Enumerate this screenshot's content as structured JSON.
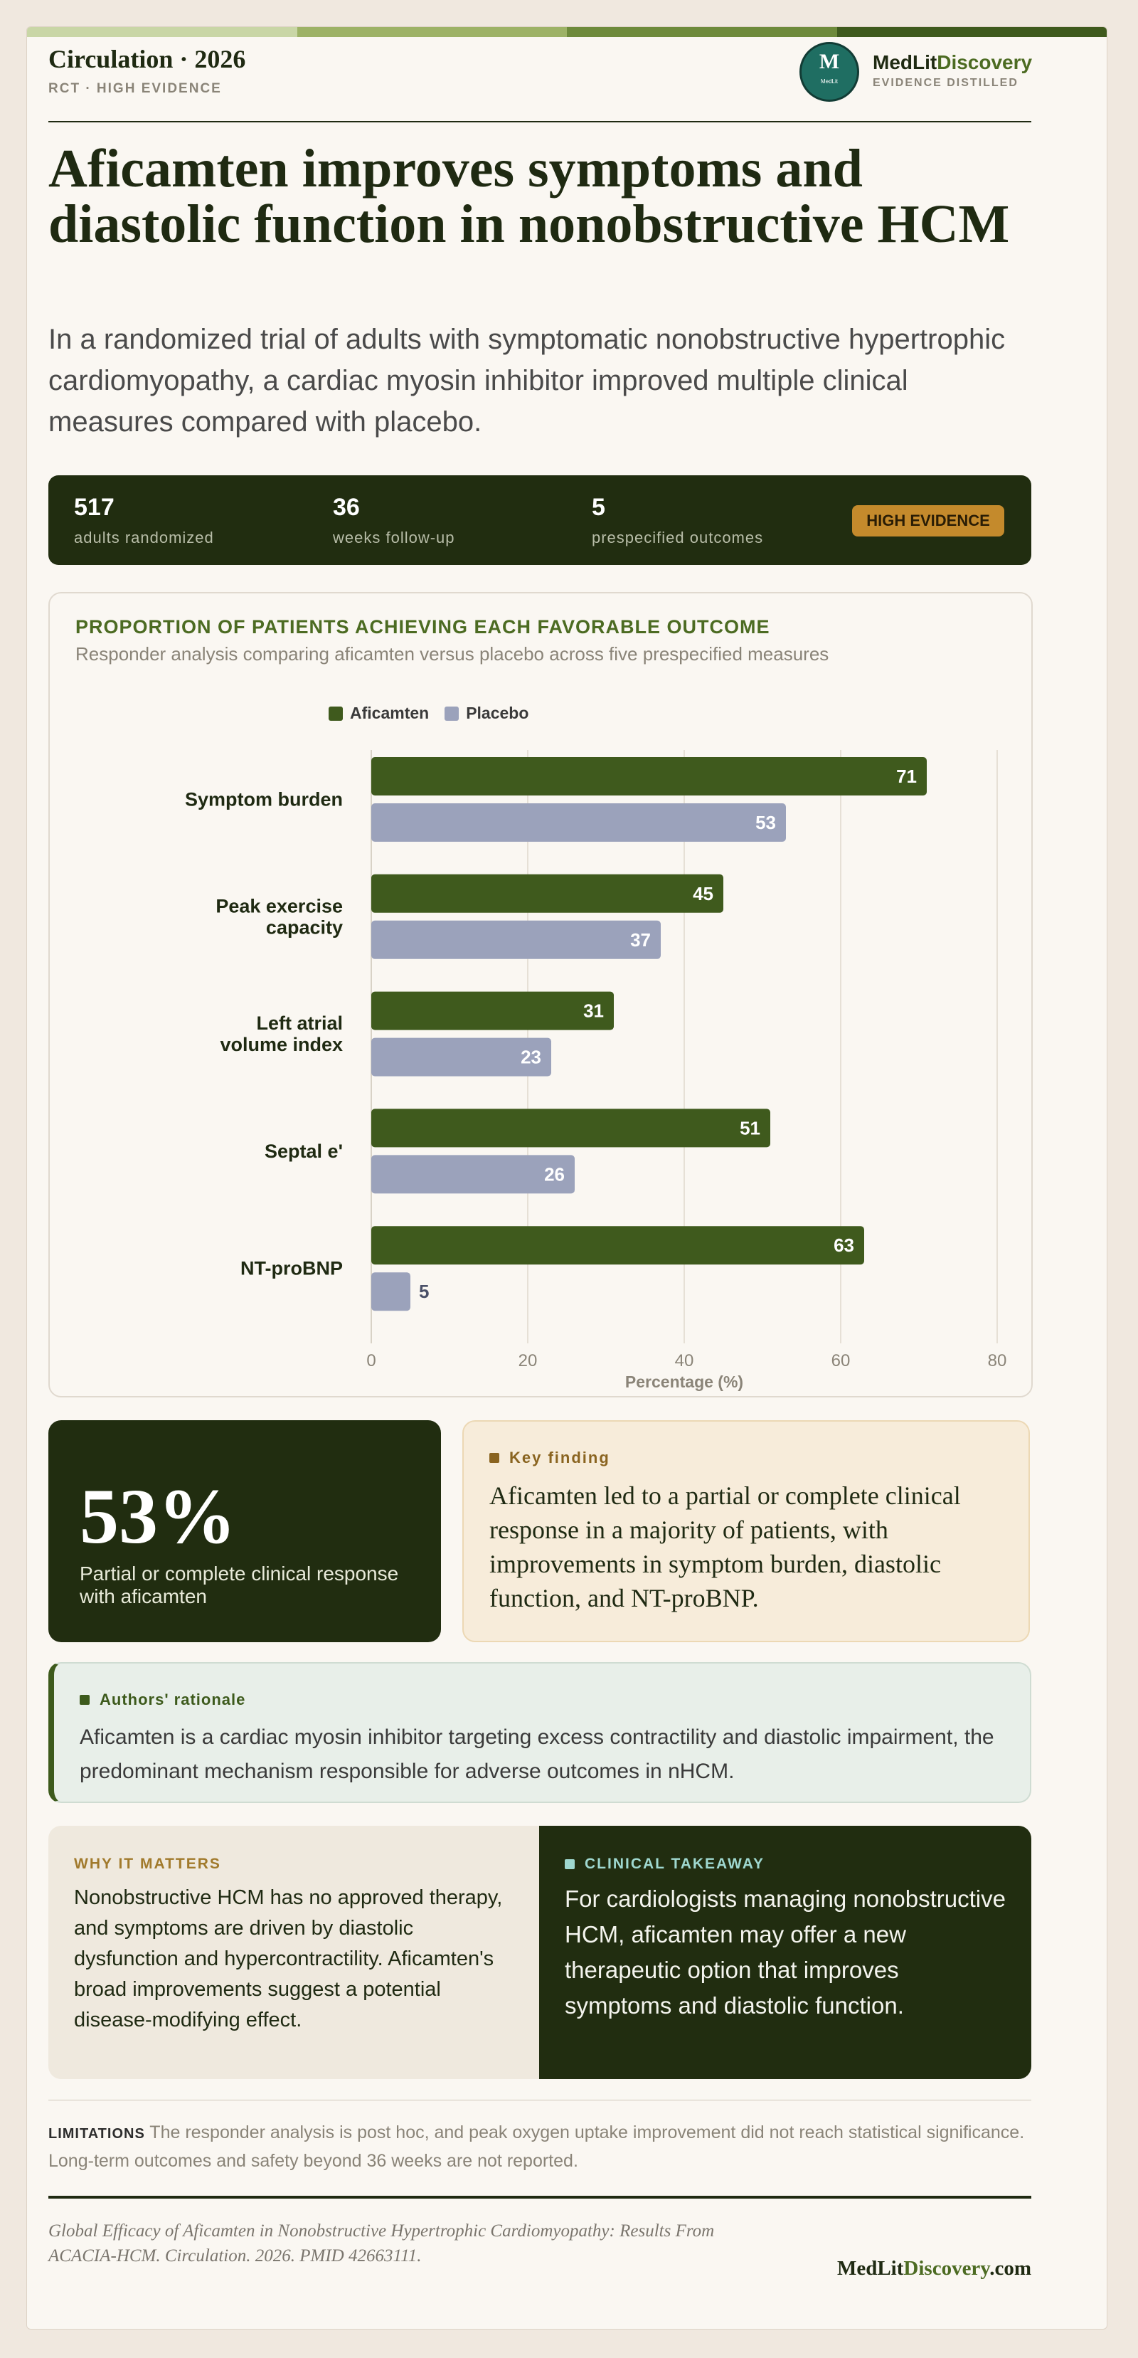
{
  "header": {
    "journal": "Circulation · 2026",
    "study_label": "RCT · HIGH EVIDENCE",
    "logo_letter": "M",
    "logo_small": "MedLit",
    "brand_part1": "MedLit",
    "brand_part2": "Discovery",
    "brand_tagline": "EVIDENCE DISTILLED"
  },
  "headline": "Aficamten improves symptoms and diastolic function in nonobstructive HCM",
  "lede": "In a randomized trial of adults with symptomatic nonobstructive hypertrophic cardiomyopathy, a cardiac myosin inhibitor improved multiple clinical measures compared with placebo.",
  "stats": [
    {
      "value": "517",
      "label": "adults randomized"
    },
    {
      "value": "36",
      "label": "weeks follow-up"
    },
    {
      "value": "5",
      "label": "prespecified outcomes"
    }
  ],
  "evidence_badge": "HIGH EVIDENCE",
  "chart_data": {
    "type": "bar",
    "orientation": "horizontal",
    "title": "PROPORTION OF PATIENTS ACHIEVING EACH FAVORABLE OUTCOME",
    "subtitle": "Responder analysis comparing aficamten versus placebo across five prespecified measures",
    "categories": [
      "Symptom burden",
      "Peak exercise capacity",
      "Left atrial volume index",
      "Septal e'",
      "NT-proBNP"
    ],
    "series": [
      {
        "name": "Aficamten",
        "values": [
          71,
          45,
          31,
          51,
          63
        ],
        "color": "#3f5a1d"
      },
      {
        "name": "Placebo",
        "values": [
          53,
          37,
          23,
          26,
          5
        ],
        "color": "#9ba2bb"
      }
    ],
    "xlabel": "Percentage (%)",
    "xlim": [
      0,
      80
    ],
    "xticks": [
      0,
      20,
      40,
      60,
      80
    ],
    "grid": true,
    "legend": "top-left"
  },
  "big_stat": {
    "value": "53%",
    "caption": "Partial or complete clinical response with aficamten"
  },
  "key_finding": {
    "label": "Key finding",
    "text": "Aficamten led to a partial or complete clinical response in a majority of patients, with improvements in symptom burden, diastolic function, and NT-proBNP."
  },
  "rationale": {
    "label": "Authors' rationale",
    "text": "Aficamten is a cardiac myosin inhibitor targeting excess contractility and diastolic impairment, the predominant mechanism responsible for adverse outcomes in nHCM."
  },
  "why_it_matters": {
    "label": "WHY IT MATTERS",
    "text": "Nonobstructive HCM has no approved therapy, and symptoms are driven by diastolic dysfunction and hypercontractility. Aficamten's broad improvements suggest a potential disease-modifying effect."
  },
  "clinical_takeaway": {
    "label": "CLINICAL TAKEAWAY",
    "text": "For cardiologists managing nonobstructive HCM, aficamten may offer a new therapeutic option that improves symptoms and diastolic function."
  },
  "limitations": {
    "label": "LIMITATIONS",
    "text": "The responder analysis is post hoc, and peak oxygen uptake improvement did not reach statistical significance. Long-term outcomes and safety beyond 36 weeks are not reported."
  },
  "footer": {
    "citation": "Global Efficacy of Aficamten in Nonobstructive Hypertrophic Cardiomyopathy: Results From ACACIA-HCM. Circulation. 2026. PMID 42663111.",
    "site_part1": "MedLit",
    "site_part2": "Discovery",
    "site_part3": ".com"
  },
  "colors": {
    "dark_green": "#212d10",
    "accent_green": "#4c6b22",
    "gold": "#c48a2c",
    "strip": [
      "#c9d6a6",
      "#9db266",
      "#6e8a3b",
      "#3f5a1d"
    ]
  }
}
